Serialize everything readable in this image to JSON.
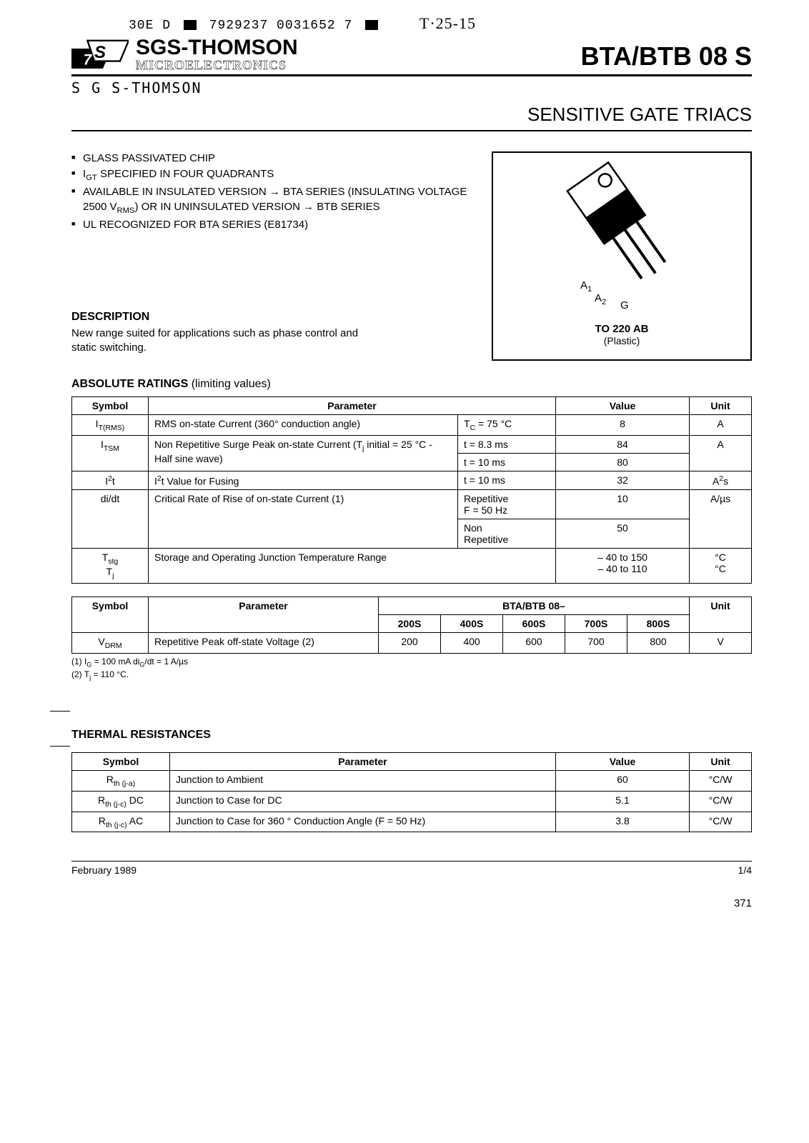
{
  "top_strip": {
    "left": "30E  D",
    "mid": "7929237 0031652 7",
    "hand": "T·25-15"
  },
  "company": {
    "top": "SGS-THOMSON",
    "bot": "MICROELECTRONICS"
  },
  "part_title": "BTA/BTB 08 S",
  "hand_company": "S G S-THOMSON",
  "subtitle": "SENSITIVE GATE TRIACS",
  "features": [
    "GLASS PASSIVATED CHIP",
    "I<sub>GT</sub> SPECIFIED IN FOUR QUADRANTS",
    "AVAILABLE IN INSULATED VERSION → BTA SERIES (INSULATING VOLTAGE 2500 V<sub>RMS</sub>) OR IN UNINSULATED VERSION → BTB SERIES",
    "UL RECOGNIZED FOR BTA SERIES (E81734)"
  ],
  "description_h": "DESCRIPTION",
  "description_body": "New range suited for applications such as phase control and static switching.",
  "pkg": {
    "pins": {
      "a1": "A",
      "a1n": "1",
      "a2": "A",
      "a2n": "2",
      "g": "G"
    },
    "label": "TO 220 AB",
    "sub": "(Plastic)"
  },
  "abs_ratings_h": "ABSOLUTE RATINGS",
  "abs_ratings_thin": "(limiting values)",
  "abs_head": {
    "sym": "Symbol",
    "param": "Parameter",
    "val": "Value",
    "unit": "Unit"
  },
  "abs": [
    {
      "sym": "I<sub>T(RMS)</sub>",
      "param": "RMS on-state Current (360° conduction angle)",
      "cond": "T<sub>C</sub> = 75 °C",
      "val": "8",
      "unit": "A"
    },
    {
      "sym": "I<sub>TSM</sub>",
      "param": "Non Repetitive Surge Peak on-state Current (T<sub>j</sub> initial = 25 °C - Half sine wave)",
      "cond": "t = 8.3 ms",
      "val": "84",
      "unit": "A"
    },
    {
      "cond": "t = 10 ms",
      "val": "80"
    },
    {
      "sym": "I<sup>2</sup>t",
      "param": "I<sup>2</sup>t Value for Fusing",
      "cond": "t = 10 ms",
      "val": "32",
      "unit": "A<sup>2</sup>s"
    },
    {
      "sym": "di/dt",
      "param": "Critical Rate of Rise of on-state Current (1)",
      "cond": "Repetitive<br>F = 50 Hz",
      "val": "10",
      "unit": "A/µs"
    },
    {
      "cond": "Non<br>Repetitive",
      "val": "50"
    },
    {
      "sym": "T<sub>stg</sub><br>T<sub>j</sub>",
      "param": "Storage and Operating Junction Temperature Range",
      "val": "– 40 to 150<br>– 40 to 110",
      "unit": "°C<br>°C"
    }
  ],
  "vdrm_head": {
    "sym": "Symbol",
    "param": "Parameter",
    "group": "BTA/BTB 08–",
    "unit": "Unit",
    "cols": [
      "200S",
      "400S",
      "600S",
      "700S",
      "800S"
    ]
  },
  "vdrm_row": {
    "sym": "V<sub>DRM</sub>",
    "param": "Repetitive Peak off-state Voltage (2)",
    "vals": [
      "200",
      "400",
      "600",
      "700",
      "800"
    ],
    "unit": "V"
  },
  "notes": {
    "n1": "(1) I<sub>G</sub> = 100 mA    di<sub>G</sub>/dt = 1 A/µs",
    "n2": "(2) T<sub>j</sub> = 110 °C."
  },
  "thermal_h": "THERMAL RESISTANCES",
  "thermal_head": {
    "sym": "Symbol",
    "param": "Parameter",
    "val": "Value",
    "unit": "Unit"
  },
  "thermal": [
    {
      "sym": "R<sub>th (j-a)</sub>",
      "param": "Junction to Ambient",
      "val": "60",
      "unit": "°C/W"
    },
    {
      "sym": "R<sub>th (j-c)</sub> DC",
      "param": "Junction to Case for DC",
      "val": "5.1",
      "unit": "°C/W"
    },
    {
      "sym": "R<sub>th (j-c)</sub> AC",
      "param": "Junction to Case for 360 ° Conduction Angle (F = 50 Hz)",
      "val": "3.8",
      "unit": "°C/W"
    }
  ],
  "footer": {
    "date": "February 1989",
    "page": "1/4",
    "sheet": "371"
  }
}
